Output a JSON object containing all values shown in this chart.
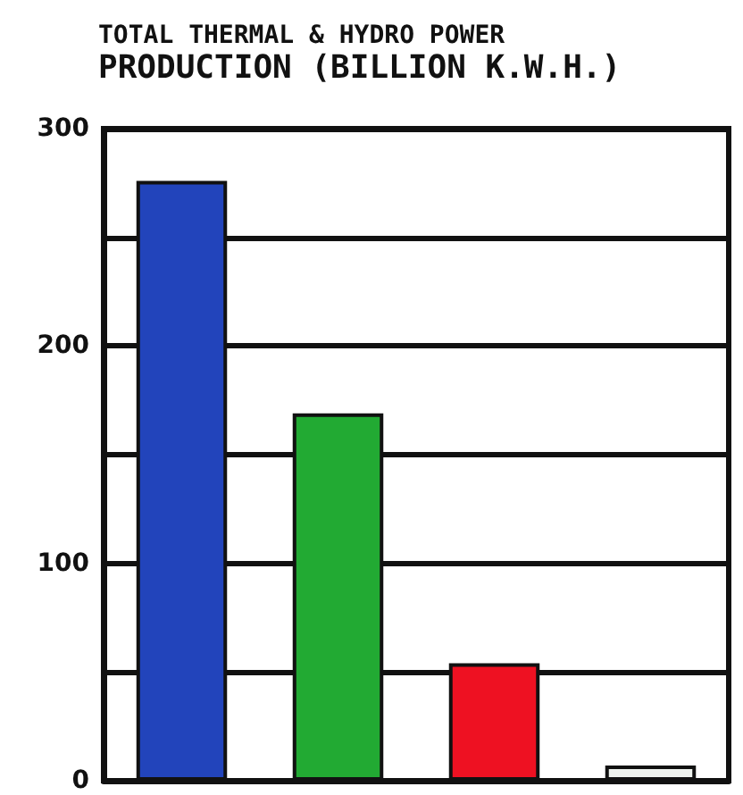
{
  "chart_data": {
    "type": "bar",
    "title": "TOTAL THERMAL & HYDRO POWER",
    "subtitle": "PRODUCTION (BILLION K.W.H.)",
    "categories": [
      null,
      null,
      null,
      null
    ],
    "values": [
      276,
      169,
      54,
      7
    ],
    "colors": [
      "#2244bb",
      "#22aa33",
      "#ee1122",
      "#eef2ee"
    ],
    "ylim": [
      0,
      300
    ],
    "yticks": [
      0,
      {
        "value": 50,
        "label": null
      },
      100,
      {
        "value": 150,
        "label": null
      },
      200,
      {
        "value": 250,
        "label": null
      },
      300
    ],
    "grid": "y"
  }
}
